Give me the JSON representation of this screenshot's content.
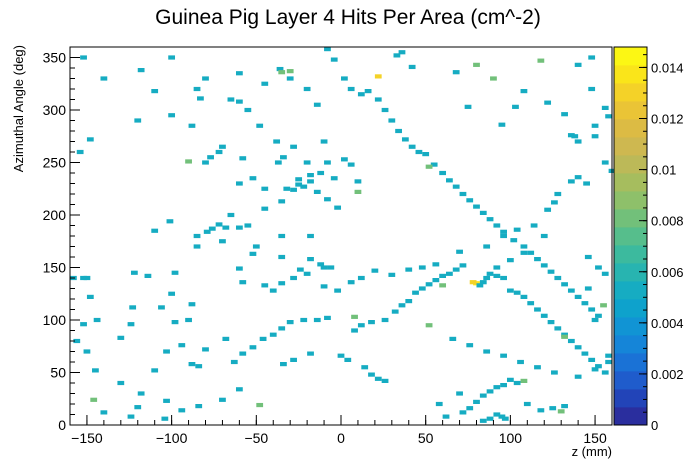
{
  "chart_data": {
    "type": "heatmap",
    "title": "Guinea Pig Layer 4 Hits Per Area (cm^-2)",
    "xlabel": "z (mm)",
    "ylabel": "Azimuthal Angle (deg)",
    "xlim": [
      -160,
      160
    ],
    "ylim": [
      0,
      360
    ],
    "zlim": [
      0,
      0.0148
    ],
    "bin_width": [
      4,
      4
    ],
    "x_ticks": [
      -150,
      -100,
      -50,
      0,
      50,
      100,
      150
    ],
    "y_ticks": [
      0,
      50,
      100,
      150,
      200,
      250,
      300,
      350
    ],
    "z_ticks": [
      0,
      0.002,
      0.004,
      0.006,
      0.008,
      0.01,
      0.012,
      0.014
    ],
    "x_tick_labels": [
      "−150",
      "−100",
      "−50",
      "0",
      "50",
      "100",
      "150"
    ],
    "y_tick_labels": [
      "0",
      "50",
      "100",
      "150",
      "200",
      "250",
      "300",
      "350"
    ],
    "z_tick_labels": [
      "0",
      "0.002",
      "0.004",
      "0.006",
      "0.008",
      "0.01",
      "0.012",
      "0.014"
    ],
    "palette": [
      "#2a2e9e",
      "#2244b8",
      "#1f5ccc",
      "#1a72d6",
      "#1585d8",
      "#1194d4",
      "#0ea2cc",
      "#16acc2",
      "#28b4b0",
      "#3cba9e",
      "#56be8c",
      "#72c07a",
      "#8ec06a",
      "#a6bd5e",
      "#bcb958",
      "#ceb850",
      "#dcbb44",
      "#eac436",
      "#f4d228",
      "#fae51a",
      "#fcf714"
    ],
    "points": [
      [
        -158,
        140,
        0.005
      ],
      [
        -152,
        140,
        0.005
      ],
      [
        -150,
        140,
        0.005
      ],
      [
        -122,
        145,
        0.005
      ],
      [
        -114,
        142,
        0.005
      ],
      [
        -98,
        145,
        0.005
      ],
      [
        -148,
        122,
        0.005
      ],
      [
        -123,
        112,
        0.005
      ],
      [
        -106,
        112,
        0.005
      ],
      [
        -100,
        125,
        0.005
      ],
      [
        -88,
        115,
        0.005
      ],
      [
        -124,
        96,
        0.005
      ],
      [
        -98,
        98,
        0.005
      ],
      [
        -90,
        100,
        0.005
      ],
      [
        -130,
        83,
        0.005
      ],
      [
        -145,
        52,
        0.005
      ],
      [
        -88,
        58,
        0.005
      ],
      [
        -84,
        56,
        0.005
      ],
      [
        -63,
        60,
        0.005
      ],
      [
        -103,
        23,
        0.005
      ],
      [
        -120,
        17,
        0.005
      ],
      [
        -101,
        194,
        0.005
      ],
      [
        -110,
        185,
        0.005
      ],
      [
        -85,
        180,
        0.005
      ],
      [
        -77,
        255,
        0.005
      ],
      [
        -72,
        260,
        0.005
      ],
      [
        -80,
        250,
        0.005
      ],
      [
        -65,
        200,
        0.005
      ],
      [
        -60,
        230,
        0.005
      ],
      [
        -52,
        235,
        0.005
      ],
      [
        -45,
        225,
        0.005
      ],
      [
        -37,
        250,
        0.005
      ],
      [
        -34,
        255,
        0.005
      ],
      [
        -10,
        270,
        0.005
      ],
      [
        -25,
        229,
        0.005
      ],
      [
        -22,
        227,
        0.005
      ],
      [
        -18,
        232,
        0.005
      ],
      [
        -14,
        222,
        0.005
      ],
      [
        -8,
        215,
        0.005
      ],
      [
        -35,
        180,
        0.005
      ],
      [
        -35,
        160,
        0.005
      ],
      [
        -18,
        180,
        0.005
      ],
      [
        -12,
        153,
        0.005
      ],
      [
        -10,
        150,
        0.005
      ],
      [
        -6,
        150,
        0.005
      ],
      [
        2,
        253,
        0.005
      ],
      [
        6,
        248,
        0.005
      ],
      [
        10,
        232,
        0.005
      ],
      [
        -2,
        207,
        0.005
      ],
      [
        -8,
        250,
        0.005
      ],
      [
        -18,
        238,
        0.005
      ],
      [
        -25,
        234,
        0.005
      ],
      [
        -28,
        224,
        0.005
      ],
      [
        -32,
        225,
        0.005
      ],
      [
        -35,
        213,
        0.005
      ],
      [
        -45,
        206,
        0.005
      ],
      [
        -55,
        190,
        0.005
      ],
      [
        -60,
        188,
        0.005
      ],
      [
        -68,
        188,
        0.005
      ],
      [
        -72,
        191,
        0.005
      ],
      [
        -76,
        187,
        0.005
      ],
      [
        -79,
        184,
        0.005
      ],
      [
        -85,
        170,
        0.005
      ],
      [
        -70,
        175,
        0.005
      ],
      [
        -60,
        149,
        0.005
      ],
      [
        -52,
        163,
        0.005
      ],
      [
        -50,
        170,
        0.005
      ],
      [
        -58,
        136,
        0.005
      ],
      [
        -45,
        133,
        0.005
      ],
      [
        -40,
        128,
        0.005
      ],
      [
        -35,
        135,
        0.005
      ],
      [
        -28,
        140,
        0.005
      ],
      [
        -24,
        148,
        0.005
      ],
      [
        -20,
        144,
        0.005
      ],
      [
        -18,
        158,
        0.005
      ],
      [
        -10,
        132,
        0.005
      ],
      [
        -2,
        128,
        0.005
      ],
      [
        -8,
        102,
        0.005
      ],
      [
        -14,
        100,
        0.005
      ],
      [
        -22,
        100,
        0.005
      ],
      [
        -30,
        98,
        0.005
      ],
      [
        -35,
        92,
        0.005
      ],
      [
        -40,
        86,
        0.005
      ],
      [
        -46,
        82,
        0.005
      ],
      [
        -52,
        74,
        0.005
      ],
      [
        -58,
        68,
        0.005
      ],
      [
        0,
        66,
        0.005
      ],
      [
        4,
        62,
        0.005
      ],
      [
        14,
        55,
        0.005
      ],
      [
        18,
        48,
        0.005
      ],
      [
        22,
        44,
        0.005
      ],
      [
        26,
        42,
        0.005
      ],
      [
        8,
        90,
        0.005
      ],
      [
        12,
        95,
        0.005
      ],
      [
        18,
        98,
        0.005
      ],
      [
        26,
        100,
        0.005
      ],
      [
        32,
        108,
        0.005
      ],
      [
        36,
        114,
        0.005
      ],
      [
        40,
        118,
        0.005
      ],
      [
        44,
        126,
        0.005
      ],
      [
        48,
        130,
        0.005
      ],
      [
        52,
        134,
        0.005
      ],
      [
        56,
        138,
        0.005
      ],
      [
        60,
        142,
        0.005
      ],
      [
        64,
        144,
        0.005
      ],
      [
        68,
        148,
        0.005
      ],
      [
        72,
        152,
        0.005
      ],
      [
        80,
        135,
        0.014
      ],
      [
        78,
        136,
        0.013
      ],
      [
        84,
        136,
        0.005
      ],
      [
        86,
        140,
        0.005
      ],
      [
        88,
        144,
        0.005
      ],
      [
        92,
        142,
        0.005
      ],
      [
        96,
        140,
        0.005
      ],
      [
        100,
        128,
        0.005
      ],
      [
        104,
        126,
        0.005
      ],
      [
        108,
        122,
        0.005
      ],
      [
        112,
        116,
        0.005
      ],
      [
        116,
        110,
        0.005
      ],
      [
        120,
        104,
        0.005
      ],
      [
        124,
        98,
        0.005
      ],
      [
        128,
        92,
        0.005
      ],
      [
        132,
        86,
        0.005
      ],
      [
        136,
        80,
        0.005
      ],
      [
        140,
        74,
        0.005
      ],
      [
        144,
        68,
        0.005
      ],
      [
        148,
        62,
        0.005
      ],
      [
        152,
        56,
        0.005
      ],
      [
        156,
        50,
        0.005
      ],
      [
        100,
        43,
        0.005
      ],
      [
        104,
        40,
        0.005
      ],
      [
        96,
        38,
        0.005
      ],
      [
        92,
        36,
        0.005
      ],
      [
        88,
        32,
        0.005
      ],
      [
        84,
        28,
        0.005
      ],
      [
        80,
        22,
        0.005
      ],
      [
        76,
        16,
        0.005
      ],
      [
        72,
        12,
        0.005
      ],
      [
        84,
        4,
        0.005
      ],
      [
        88,
        6,
        0.005
      ],
      [
        92,
        10,
        0.005
      ],
      [
        95,
        8,
        0.005
      ],
      [
        97,
        6,
        0.005
      ],
      [
        110,
        20,
        0.005
      ],
      [
        118,
        14,
        0.005
      ],
      [
        125,
        16,
        0.005
      ],
      [
        132,
        18,
        0.005
      ],
      [
        58,
        20,
        0.005
      ],
      [
        62,
        8,
        0.005
      ],
      [
        -48,
        19,
        0.008
      ],
      [
        -146,
        24,
        0.008
      ],
      [
        8,
        103,
        0.008
      ],
      [
        52,
        95,
        0.008
      ],
      [
        132,
        84,
        0.008
      ],
      [
        60,
        133,
        0.008
      ],
      [
        155,
        114,
        0.008
      ],
      [
        82,
        133,
        0.005
      ],
      [
        -83,
        311,
        0.005
      ],
      [
        -85,
        320,
        0.005
      ],
      [
        -60,
        335,
        0.005
      ],
      [
        -60,
        308,
        0.005
      ],
      [
        -45,
        325,
        0.005
      ],
      [
        -36,
        339,
        0.005
      ],
      [
        -30,
        330,
        0.005
      ],
      [
        -20,
        320,
        0.005
      ],
      [
        -14,
        305,
        0.005
      ],
      [
        -8,
        358,
        0.005
      ],
      [
        -4,
        348,
        0.005
      ],
      [
        2,
        330,
        0.005
      ],
      [
        6,
        320,
        0.005
      ],
      [
        12,
        315,
        0.005
      ],
      [
        16,
        318,
        0.005
      ],
      [
        22,
        310,
        0.005
      ],
      [
        26,
        300,
        0.005
      ],
      [
        30,
        290,
        0.005
      ],
      [
        34,
        280,
        0.005
      ],
      [
        38,
        272,
        0.005
      ],
      [
        42,
        265,
        0.005
      ],
      [
        46,
        260,
        0.005
      ],
      [
        50,
        258,
        0.005
      ],
      [
        55,
        248,
        0.005
      ],
      [
        60,
        240,
        0.005
      ],
      [
        64,
        233,
        0.005
      ],
      [
        68,
        227,
        0.005
      ],
      [
        72,
        220,
        0.005
      ],
      [
        76,
        214,
        0.005
      ],
      [
        80,
        208,
        0.005
      ],
      [
        84,
        202,
        0.005
      ],
      [
        88,
        196,
        0.005
      ],
      [
        92,
        190,
        0.005
      ],
      [
        96,
        184,
        0.005
      ],
      [
        102,
        176,
        0.005
      ],
      [
        108,
        170,
        0.005
      ],
      [
        112,
        164,
        0.005
      ],
      [
        116,
        158,
        0.005
      ],
      [
        120,
        152,
        0.005
      ],
      [
        124,
        146,
        0.005
      ],
      [
        128,
        140,
        0.005
      ],
      [
        132,
        134,
        0.005
      ],
      [
        136,
        128,
        0.005
      ],
      [
        140,
        122,
        0.005
      ],
      [
        144,
        116,
        0.005
      ],
      [
        148,
        110,
        0.005
      ],
      [
        152,
        104,
        0.005
      ],
      [
        33,
        352,
        0.005
      ],
      [
        36,
        355,
        0.005
      ],
      [
        42,
        341,
        0.005
      ],
      [
        68,
        336,
        0.005
      ],
      [
        75,
        303,
        0.005
      ],
      [
        95,
        286,
        0.005
      ],
      [
        103,
        303,
        0.005
      ],
      [
        108,
        318,
        0.005
      ],
      [
        122,
        307,
        0.005
      ],
      [
        132,
        296,
        0.005
      ],
      [
        136,
        276,
        0.005
      ],
      [
        138,
        275,
        0.005
      ],
      [
        140,
        270,
        0.005
      ],
      [
        150,
        275,
        0.005
      ],
      [
        156,
        250,
        0.005
      ],
      [
        160,
        242,
        0.005
      ],
      [
        145,
        230,
        0.005
      ],
      [
        140,
        236,
        0.005
      ],
      [
        136,
        232,
        0.005
      ],
      [
        128,
        220,
        0.005
      ],
      [
        122,
        205,
        0.005
      ],
      [
        114,
        190,
        0.005
      ],
      [
        104,
        186,
        0.005
      ],
      [
        96,
        180,
        0.005
      ],
      [
        86,
        170,
        0.005
      ],
      [
        70,
        165,
        0.005
      ],
      [
        56,
        153,
        0.005
      ],
      [
        48,
        150,
        0.005
      ],
      [
        40,
        148,
        0.005
      ],
      [
        30,
        143,
        0.005
      ],
      [
        20,
        147,
        0.005
      ],
      [
        12,
        140,
        0.005
      ],
      [
        6,
        136,
        0.005
      ],
      [
        -152,
        350,
        0.005
      ],
      [
        -140,
        330,
        0.005
      ],
      [
        -118,
        338,
        0.005
      ],
      [
        -110,
        318,
        0.005
      ],
      [
        -100,
        350,
        0.005
      ],
      [
        -80,
        330,
        0.005
      ],
      [
        -65,
        310,
        0.005
      ],
      [
        -55,
        300,
        0.005
      ],
      [
        -48,
        285,
        0.005
      ],
      [
        -38,
        270,
        0.005
      ],
      [
        -28,
        265,
        0.005
      ],
      [
        -20,
        250,
        0.005
      ],
      [
        -12,
        240,
        0.005
      ],
      [
        -4,
        235,
        0.005
      ],
      [
        -154,
        260,
        0.005
      ],
      [
        -148,
        272,
        0.005
      ],
      [
        -120,
        290,
        0.005
      ],
      [
        -100,
        295,
        0.005
      ],
      [
        -88,
        285,
        0.005
      ],
      [
        -70,
        265,
        0.005
      ],
      [
        -58,
        254,
        0.005
      ],
      [
        22,
        332,
        0.013
      ],
      [
        -30,
        337,
        0.008
      ],
      [
        -90,
        251,
        0.008
      ],
      [
        10,
        222,
        0.008
      ],
      [
        52,
        246,
        0.008
      ],
      [
        80,
        343,
        0.008
      ],
      [
        90,
        330,
        0.008
      ],
      [
        118,
        347,
        0.008
      ],
      [
        -35,
        336,
        0.008
      ],
      [
        108,
        42,
        0.008
      ],
      [
        130,
        13,
        0.008
      ],
      [
        70,
        30,
        0.005
      ],
      [
        -140,
        12,
        0.005
      ],
      [
        -124,
        8,
        0.005
      ],
      [
        -110,
        52,
        0.005
      ],
      [
        -103,
        70,
        0.005
      ],
      [
        -94,
        76,
        0.005
      ],
      [
        -80,
        72,
        0.005
      ],
      [
        -68,
        82,
        0.005
      ],
      [
        -18,
        68,
        0.005
      ],
      [
        -28,
        62,
        0.005
      ],
      [
        -34,
        58,
        0.005
      ],
      [
        148,
        350,
        0.005
      ],
      [
        140,
        343,
        0.005
      ],
      [
        148,
        320,
        0.005
      ],
      [
        156,
        302,
        0.005
      ],
      [
        158,
        294,
        0.005
      ],
      [
        150,
        285,
        0.005
      ],
      [
        126,
        212,
        0.005
      ],
      [
        120,
        180,
        0.005
      ],
      [
        108,
        164,
        0.005
      ],
      [
        100,
        157,
        0.005
      ],
      [
        92,
        150,
        0.005
      ],
      [
        146,
        160,
        0.005
      ],
      [
        152,
        150,
        0.005
      ],
      [
        156,
        144,
        0.005
      ],
      [
        146,
        130,
        0.005
      ],
      [
        150,
        100,
        0.005
      ],
      [
        158,
        66,
        0.005
      ],
      [
        158,
        60,
        0.005
      ],
      [
        150,
        53,
        0.005
      ],
      [
        140,
        46,
        0.005
      ],
      [
        126,
        50,
        0.005
      ],
      [
        116,
        55,
        0.005
      ],
      [
        106,
        60,
        0.005
      ],
      [
        96,
        66,
        0.005
      ],
      [
        86,
        70,
        0.005
      ],
      [
        76,
        76,
        0.005
      ],
      [
        66,
        82,
        0.005
      ],
      [
        -144,
        100,
        0.005
      ],
      [
        -152,
        96,
        0.005
      ],
      [
        -156,
        80,
        0.005
      ],
      [
        -150,
        70,
        0.005
      ],
      [
        -130,
        40,
        0.005
      ],
      [
        -118,
        30,
        0.005
      ],
      [
        -104,
        6,
        0.005
      ],
      [
        -94,
        14,
        0.005
      ],
      [
        -84,
        18,
        0.005
      ],
      [
        -70,
        24,
        0.005
      ],
      [
        -60,
        34,
        0.005
      ]
    ]
  }
}
